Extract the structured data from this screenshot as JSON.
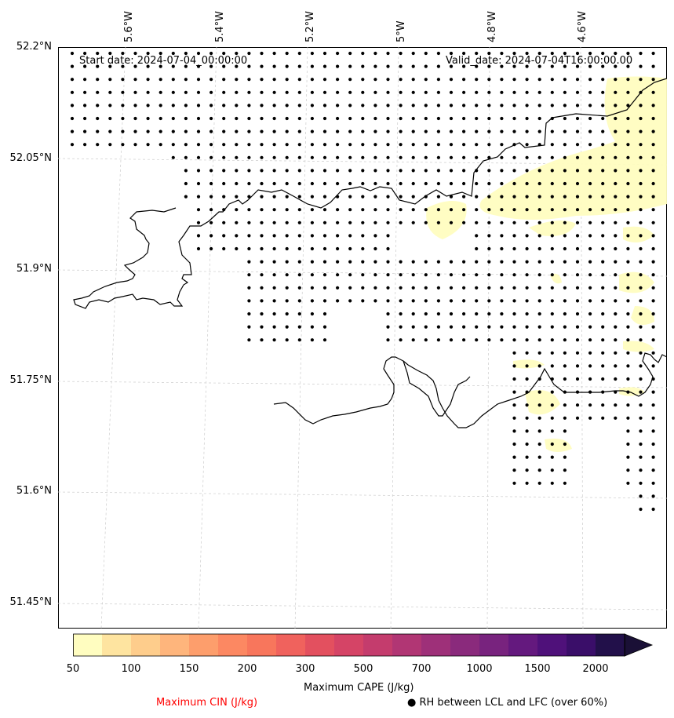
{
  "map": {
    "start_date": "Start date: 2024-07-04_00:00:00",
    "valid_date": "Valid_date: 2024-07-04T16:00:00.00",
    "lon_labels": [
      "5.6°W",
      "5.4°W",
      "5.2°W",
      "5°W",
      "4.8°W",
      "4.6°W"
    ],
    "lat_labels": [
      "52.2°N",
      "52.05°N",
      "51.9°N",
      "51.75°N",
      "51.6°N",
      "51.45°N"
    ],
    "coastline_color": "#000000",
    "gridline_color": "#cccccc"
  },
  "colorbar": {
    "tick_labels": [
      "50",
      "100",
      "150",
      "200",
      "300",
      "500",
      "700",
      "1000",
      "1500",
      "2000"
    ],
    "title": "Maximum CAPE (J/kg)",
    "colors": [
      "#fffdc0",
      "#fee4a0",
      "#fecd8c",
      "#feb57c",
      "#fd9e6c",
      "#fc8862",
      "#f8765c",
      "#f0625d",
      "#e3505f",
      "#d54466",
      "#c43c6d",
      "#b13674",
      "#9e3079",
      "#8a2a7c",
      "#78237e",
      "#64197e",
      "#4f117a",
      "#3a0e69",
      "#22104a"
    ],
    "extend_color": "#1a1036"
  },
  "legend": {
    "cin_label": "Maximum CIN (J/kg)",
    "rh_label": "● RH between LCL and LFC (over 60%)",
    "cin_color": "#ff0000"
  }
}
